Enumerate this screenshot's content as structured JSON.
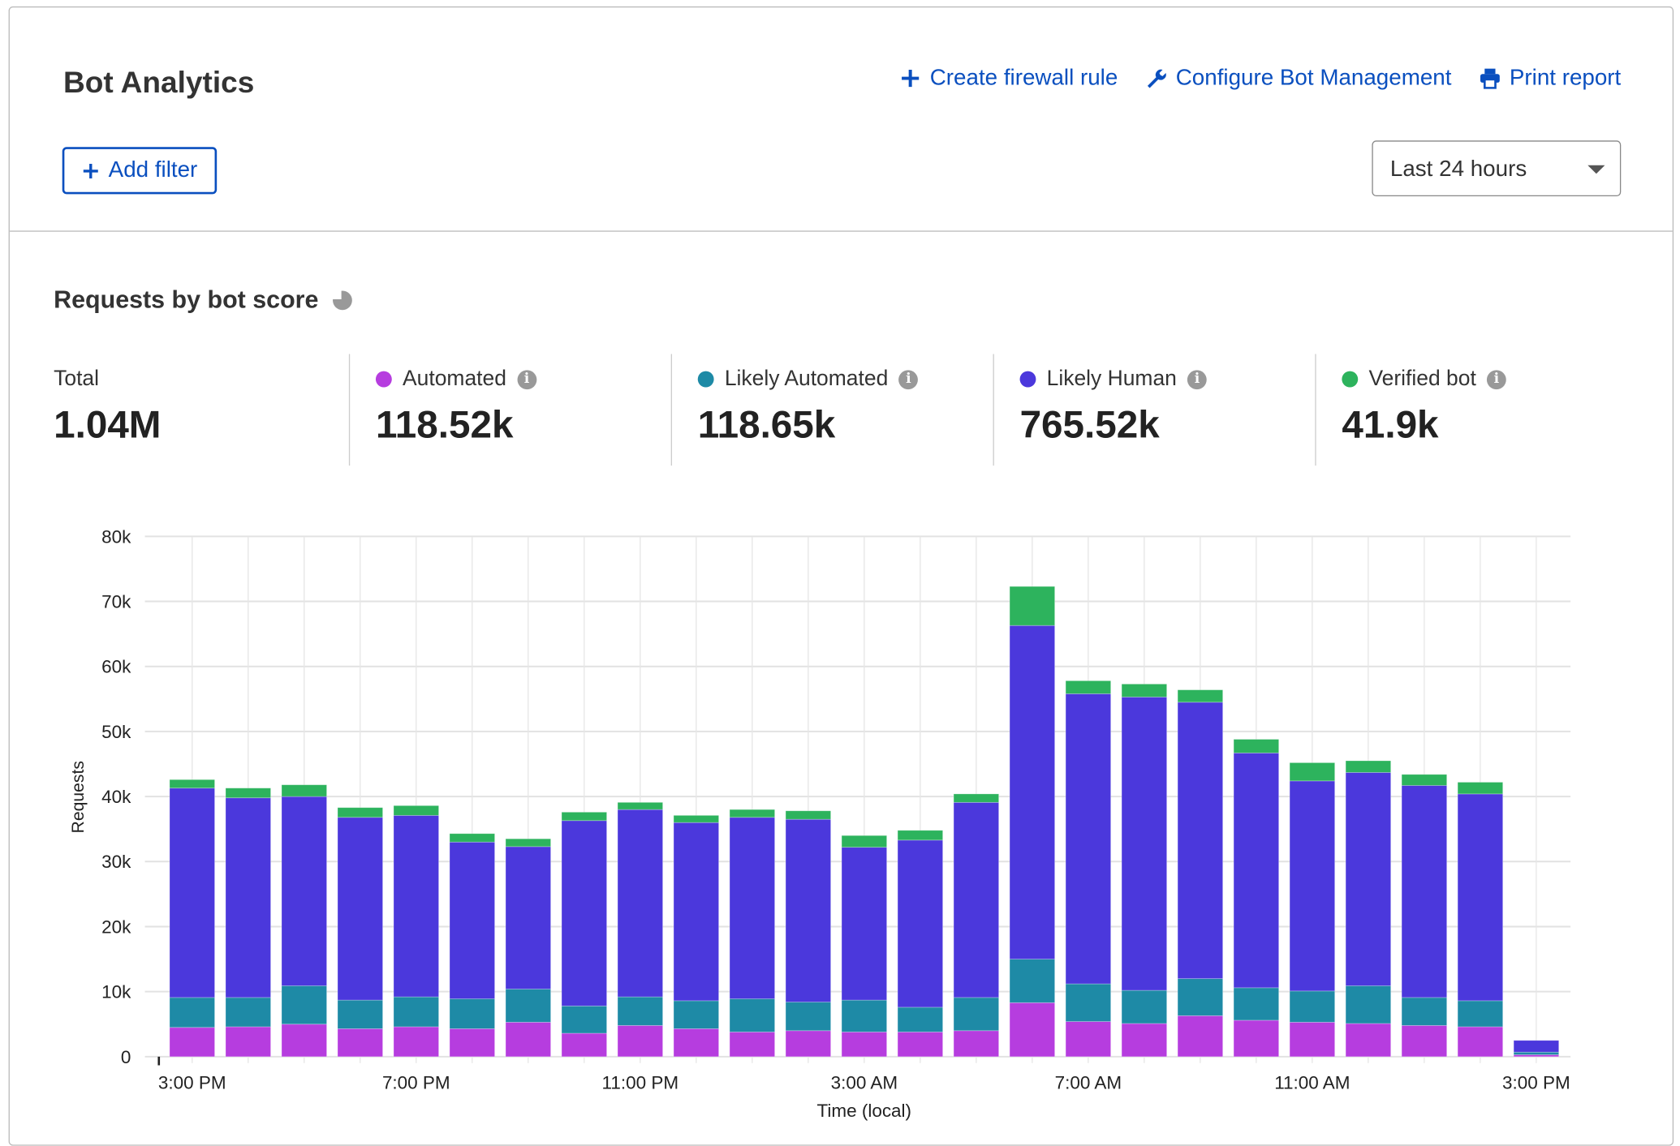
{
  "header": {
    "title": "Bot Analytics",
    "actions": [
      {
        "label": "Create firewall rule",
        "icon": "plus-icon"
      },
      {
        "label": "Configure Bot Management",
        "icon": "wrench-icon"
      },
      {
        "label": "Print report",
        "icon": "printer-icon"
      }
    ],
    "add_filter_label": "Add filter",
    "time_range": "Last 24 hours"
  },
  "section": {
    "title": "Requests by bot score"
  },
  "stats": [
    {
      "label": "Total",
      "value": "1.04M"
    },
    {
      "label": "Automated",
      "value": "118.52k",
      "color": "#b63ddf"
    },
    {
      "label": "Likely Automated",
      "value": "118.65k",
      "color": "#1e8aa6"
    },
    {
      "label": "Likely Human",
      "value": "765.52k",
      "color": "#4b38dc"
    },
    {
      "label": "Verified bot",
      "value": "41.9k",
      "color": "#2db35d"
    }
  ],
  "chart_data": {
    "type": "bar",
    "stacked": true,
    "xlabel": "Time (local)",
    "ylabel": "Requests",
    "ylim": [
      0,
      80000
    ],
    "yticks": [
      "0",
      "10k",
      "20k",
      "30k",
      "40k",
      "50k",
      "60k",
      "70k",
      "80k"
    ],
    "xticks": [
      {
        "index": 0,
        "label": "3:00 PM"
      },
      {
        "index": 4,
        "label": "7:00 PM"
      },
      {
        "index": 8,
        "label": "11:00 PM"
      },
      {
        "index": 12,
        "label": "3:00 AM"
      },
      {
        "index": 16,
        "label": "7:00 AM"
      },
      {
        "index": 20,
        "label": "11:00 AM"
      },
      {
        "index": 24,
        "label": "3:00 PM"
      }
    ],
    "grid": true,
    "series": [
      {
        "name": "Automated",
        "color": "#b63ddf",
        "values": [
          4500,
          4600,
          5000,
          4300,
          4600,
          4300,
          5300,
          3600,
          4800,
          4300,
          3800,
          4000,
          3800,
          3800,
          4000,
          8300,
          5400,
          5100,
          6300,
          5600,
          5300,
          5100,
          4800,
          4600,
          300
        ]
      },
      {
        "name": "Likely Automated",
        "color": "#1e8aa6",
        "values": [
          4600,
          4500,
          5900,
          4400,
          4600,
          4600,
          5100,
          4200,
          4400,
          4300,
          5100,
          4400,
          4900,
          3800,
          5100,
          6700,
          5800,
          5100,
          5700,
          5000,
          4800,
          5800,
          4300,
          4000,
          400
        ]
      },
      {
        "name": "Likely Human",
        "color": "#4b38dc",
        "values": [
          32200,
          30700,
          29100,
          28100,
          27900,
          24100,
          21900,
          28500,
          28800,
          27400,
          27900,
          28100,
          23500,
          25700,
          30000,
          51300,
          44600,
          45100,
          42500,
          36100,
          32300,
          32800,
          32600,
          31800,
          1800
        ]
      },
      {
        "name": "Verified bot",
        "color": "#2db35d",
        "values": [
          1300,
          1500,
          1800,
          1500,
          1500,
          1300,
          1200,
          1300,
          1100,
          1100,
          1200,
          1300,
          1800,
          1500,
          1300,
          6000,
          2000,
          2000,
          1900,
          2100,
          2800,
          1800,
          1700,
          1800,
          0
        ]
      }
    ]
  }
}
